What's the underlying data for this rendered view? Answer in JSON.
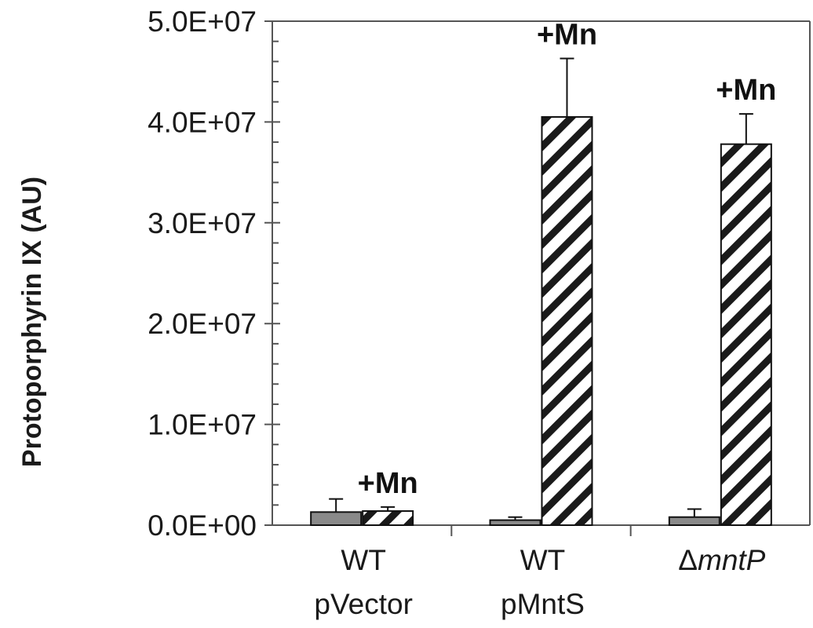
{
  "chart_data": {
    "type": "bar",
    "ylabel": "Protoporphyrin IX (AU)",
    "ylim": [
      0,
      50000000
    ],
    "yticks": [
      "0.0E+00",
      "1.0E+07",
      "2.0E+07",
      "3.0E+07",
      "4.0E+07",
      "5.0E+07"
    ],
    "categories": [
      {
        "line1": "WT",
        "line2": "pVector"
      },
      {
        "line1": "WT",
        "line2": "pMntS"
      },
      {
        "line1": "ΔmntP",
        "line2": ""
      }
    ],
    "series": [
      {
        "fill": "solid-gray",
        "values": [
          1300000,
          500000,
          800000
        ],
        "errors": [
          1300000,
          300000,
          800000
        ]
      },
      {
        "fill": "diagonal-hatch",
        "values": [
          1400000,
          40500000,
          37800000
        ],
        "errors": [
          400000,
          5800000,
          3000000
        ],
        "annotation": "+Mn"
      }
    ],
    "colors": {
      "solid": "#8a8a8a",
      "hatch": "#1a1a1a",
      "axis": "#555555"
    },
    "grid": false,
    "legend": "none"
  }
}
